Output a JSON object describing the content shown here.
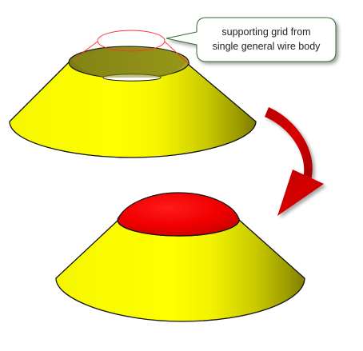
{
  "callout": {
    "line1": "supporting grid from",
    "line2": "single general wire body"
  },
  "colors": {
    "cone": "#ffff00",
    "cone_shadow": "#2e2e00",
    "dome": "#ff0000",
    "arrow": "#d10000",
    "wire_highlight": "#ff3333",
    "callout_border": "#2f6a2f"
  },
  "figures": [
    {
      "name": "cone-with-opening",
      "description_visible": false
    },
    {
      "name": "cone-with-dome-cap",
      "description_visible": false
    }
  ]
}
